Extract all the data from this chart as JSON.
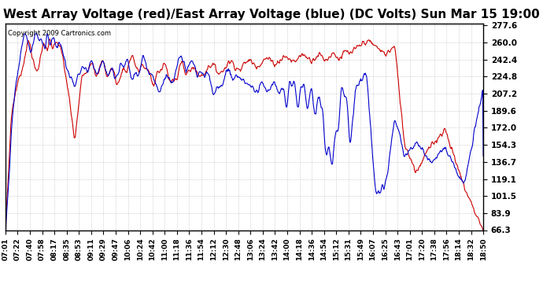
{
  "title": "West Array Voltage (red)/East Array Voltage (blue) (DC Volts) Sun Mar 15 19:00",
  "copyright_text": "Copyright 2009 Cartronics.com",
  "ylabel_right_values": [
    277.6,
    260.0,
    242.4,
    224.8,
    207.2,
    189.6,
    172.0,
    154.3,
    136.7,
    119.1,
    101.5,
    83.9,
    66.3
  ],
  "ymin": 66.3,
  "ymax": 277.6,
  "x_labels": [
    "07:01",
    "07:22",
    "07:40",
    "07:58",
    "08:17",
    "08:35",
    "08:53",
    "09:11",
    "09:29",
    "09:47",
    "10:06",
    "10:24",
    "10:42",
    "11:00",
    "11:18",
    "11:36",
    "11:54",
    "12:12",
    "12:30",
    "12:48",
    "13:06",
    "13:24",
    "13:42",
    "14:00",
    "14:18",
    "14:36",
    "14:54",
    "15:12",
    "15:31",
    "15:49",
    "16:07",
    "16:25",
    "16:43",
    "17:01",
    "17:20",
    "17:38",
    "17:56",
    "18:14",
    "18:32",
    "18:50"
  ],
  "title_fontsize": 11,
  "background_color": "#ffffff",
  "grid_color": "#aaaaaa",
  "red_color": "#cc0000",
  "blue_color": "#0000cc"
}
